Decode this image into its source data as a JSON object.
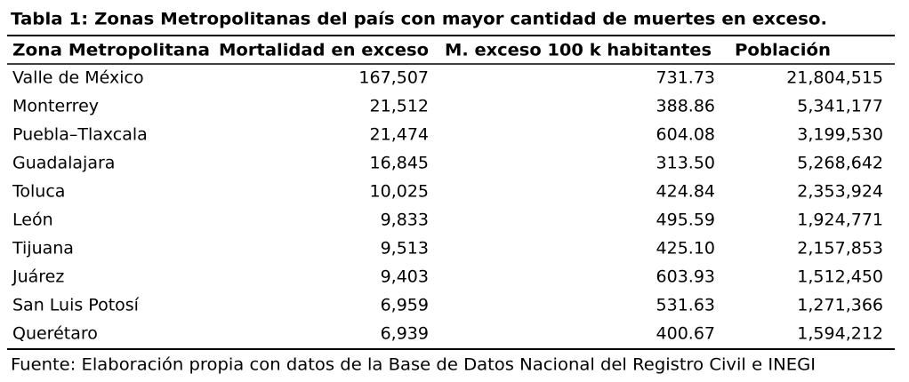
{
  "title": "Tabla 1: Zonas Metropolitanas del país con mayor cantidad de muertes en exceso.",
  "table": {
    "header": [
      "Zona Metropolitana",
      "Mortalidad en exceso",
      "M. exceso 100 k habitantes",
      "Población"
    ],
    "rows": [
      [
        "Valle de México",
        "167,507",
        "731.73",
        "21,804,515"
      ],
      [
        "Monterrey",
        "21,512",
        "388.86",
        "5,341,177"
      ],
      [
        "Puebla–Tlaxcala",
        "21,474",
        "604.08",
        "3,199,530"
      ],
      [
        "Guadalajara",
        "16,845",
        "313.50",
        "5,268,642"
      ],
      [
        "Toluca",
        "10,025",
        "424.84",
        "2,353,924"
      ],
      [
        "León",
        "9,833",
        "495.59",
        "1,924,771"
      ],
      [
        "Tijuana",
        "9,513",
        "425.10",
        "2,157,853"
      ],
      [
        "Juárez",
        "9,403",
        "603.93",
        "1,512,450"
      ],
      [
        "San Luis Potosí",
        "6,959",
        "531.63",
        "1,271,366"
      ],
      [
        "Querétaro",
        "6,939",
        "400.67",
        "1,594,212"
      ]
    ]
  },
  "footer": "Fuente: Elaboración propia con datos de la Base de Datos Nacional del Registro Civil e INEGI"
}
